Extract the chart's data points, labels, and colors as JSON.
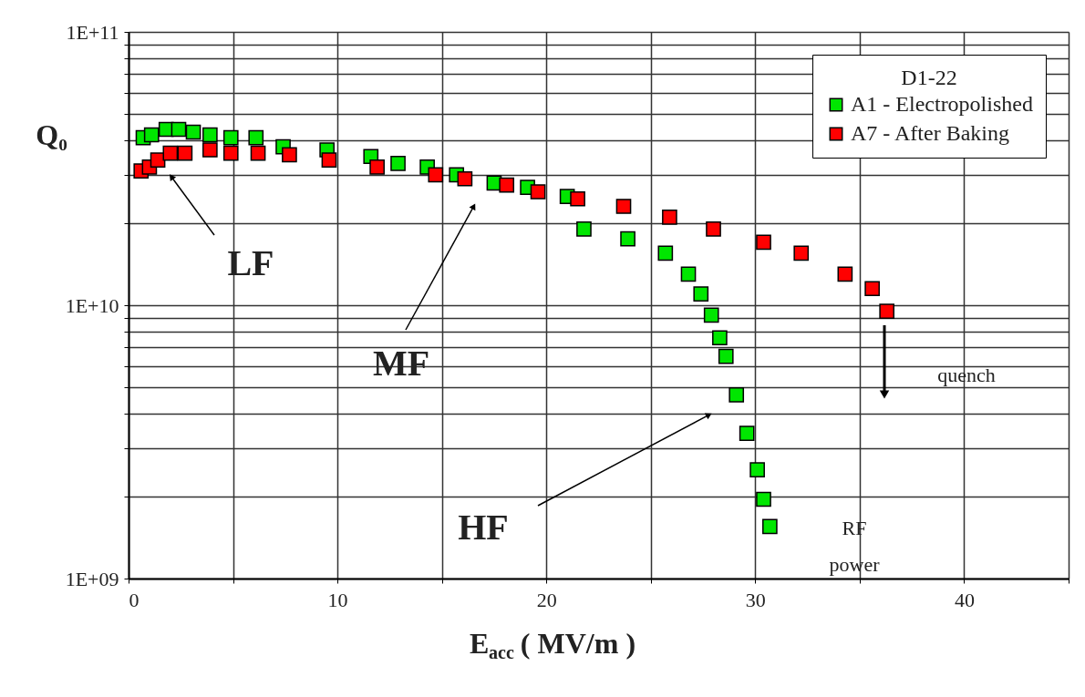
{
  "chart_data": {
    "type": "scatter",
    "xlabel": "E$_{acc}$ ( MV/m )",
    "ylabel": "Q₀",
    "legend_title": "D1-22",
    "log": "y",
    "grid": true,
    "legend": "top right",
    "marker": "square",
    "xlim": [
      0,
      45
    ],
    "xticks": [
      0,
      {
        "value": 5,
        "label": null
      },
      10,
      {
        "value": 15,
        "label": null
      },
      20,
      {
        "value": 25,
        "label": null
      },
      30,
      {
        "value": 35,
        "label": null
      },
      40,
      {
        "value": 45,
        "label": null
      }
    ],
    "ylim": [
      1000000000.0,
      100000000000.0
    ],
    "yticks": [
      {
        "value": 1000000000.0,
        "label": "1E+09"
      },
      {
        "value": 2000000000.0,
        "label": null
      },
      {
        "value": 3000000000.0,
        "label": null
      },
      {
        "value": 4000000000.0,
        "label": null
      },
      {
        "value": 5000000000.0,
        "label": null
      },
      {
        "value": 6000000000.0,
        "label": null
      },
      {
        "value": 7000000000.0,
        "label": null
      },
      {
        "value": 8000000000.0,
        "label": null
      },
      {
        "value": 9000000000.0,
        "label": null
      },
      {
        "value": 10000000000.0,
        "label": "1E+10"
      },
      {
        "value": 20000000000.0,
        "label": null
      },
      {
        "value": 30000000000.0,
        "label": null
      },
      {
        "value": 40000000000.0,
        "label": null
      },
      {
        "value": 50000000000.0,
        "label": null
      },
      {
        "value": 60000000000.0,
        "label": null
      },
      {
        "value": 70000000000.0,
        "label": null
      },
      {
        "value": 80000000000.0,
        "label": null
      },
      {
        "value": 90000000000.0,
        "label": null
      },
      {
        "value": 100000000000.0,
        "label": "1E+11"
      }
    ],
    "series": [
      {
        "name": "A1 - Electropolished",
        "color": "#00e600",
        "x": [
          0.7,
          1.1,
          1.8,
          2.4,
          3.1,
          3.9,
          4.9,
          6.1,
          7.4,
          9.5,
          11.6,
          12.9,
          14.3,
          15.7,
          17.5,
          19.1,
          21.0,
          21.8,
          23.9,
          25.7,
          26.8,
          27.4,
          27.9,
          28.3,
          28.6,
          29.1,
          29.6,
          30.1,
          30.4,
          30.7
        ],
        "values": [
          41000000000.0,
          42000000000.0,
          44000000000.0,
          44000000000.0,
          43000000000.0,
          42000000000.0,
          41000000000.0,
          41000000000.0,
          38000000000.0,
          37000000000.0,
          35000000000.0,
          33000000000.0,
          32000000000.0,
          30000000000.0,
          28000000000.0,
          27000000000.0,
          25000000000.0,
          19000000000.0,
          17500000000.0,
          15500000000.0,
          13000000000.0,
          11000000000.0,
          9200000000.0,
          7600000000.0,
          6500000000.0,
          4700000000.0,
          3400000000.0,
          2500000000.0,
          1950000000.0,
          1550000000.0
        ]
      },
      {
        "name": "A7 - After Baking",
        "color": "#ff0000",
        "x": [
          0.6,
          1.0,
          1.4,
          2.0,
          2.7,
          3.9,
          4.9,
          6.2,
          7.7,
          9.6,
          11.9,
          14.7,
          16.1,
          18.1,
          19.6,
          21.5,
          23.7,
          25.9,
          28.0,
          30.4,
          32.2,
          34.3,
          35.6,
          36.3
        ],
        "values": [
          31000000000.0,
          32000000000.0,
          34000000000.0,
          36000000000.0,
          36000000000.0,
          37000000000.0,
          36000000000.0,
          36000000000.0,
          35500000000.0,
          34000000000.0,
          32000000000.0,
          30000000000.0,
          29000000000.0,
          27500000000.0,
          26000000000.0,
          24500000000.0,
          23000000000.0,
          21000000000.0,
          19000000000.0,
          17000000000.0,
          15500000000.0,
          13000000000.0,
          11500000000.0,
          9500000000.0
        ]
      }
    ],
    "annotations": [
      "LF",
      "MF",
      "HF",
      "quench",
      "RF power"
    ]
  }
}
